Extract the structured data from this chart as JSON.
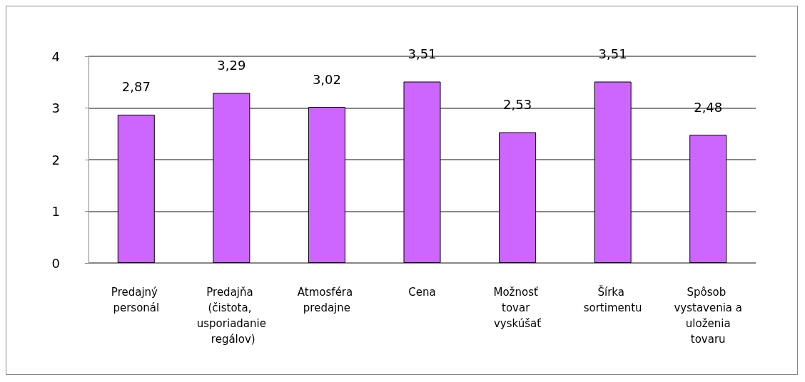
{
  "chart_data": {
    "type": "bar",
    "categories": [
      "Predajný personál",
      "Predajňa (čistota, usporiadanie regálov)",
      "Atmosféra predajne",
      "Cena",
      "Možnosť tovar vyskúšať",
      "Šírka sortimentu",
      "Spôsob vystavenia a uloženia tovaru"
    ],
    "values": [
      2.87,
      3.29,
      3.02,
      3.51,
      2.53,
      3.51,
      2.48
    ],
    "value_labels": [
      "2,87",
      "3,29",
      "3,02",
      "3,51",
      "2,53",
      "3,51",
      "2,48"
    ],
    "color": "#cc66ff",
    "ylim": [
      0,
      4
    ],
    "yticks": [
      0,
      1,
      2,
      3,
      4
    ],
    "grid": "y"
  }
}
